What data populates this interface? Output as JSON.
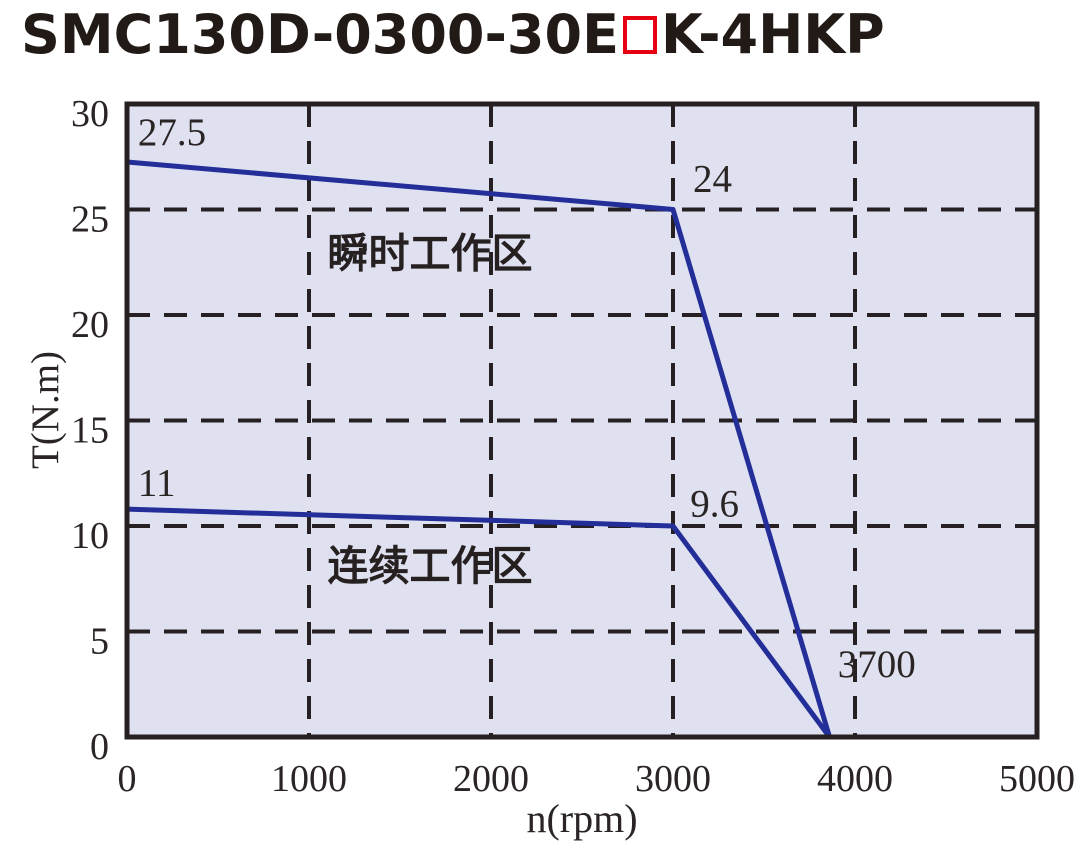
{
  "title": {
    "prefix": "SMC130D-0300-30E",
    "placeholder_char": "□",
    "suffix": "K-4HKP",
    "color": "#221a17",
    "box_color": "#e60012"
  },
  "chart_data": {
    "type": "line",
    "title": "SMC130D-0300-30E□K-4HKP torque-speed curve",
    "xlabel": "n(rpm)",
    "ylabel": "T(N.m)",
    "xlim": [
      0,
      5000
    ],
    "ylim": [
      0,
      30
    ],
    "x_ticks": [
      0,
      1000,
      2000,
      3000,
      4000,
      5000
    ],
    "y_ticks": [
      0,
      5,
      10,
      15,
      20,
      25,
      30
    ],
    "grid": "dashed",
    "legend_position": "none",
    "plot_background": "#dfe1f1",
    "line_color": "#232e99",
    "grid_color": "#262023",
    "text_color": "#2a2424",
    "series": [
      {
        "name": "瞬时工作区",
        "points": [
          [
            0,
            27.5
          ],
          [
            3000,
            24
          ],
          [
            3700,
            0
          ]
        ],
        "drawn_points": [
          [
            0,
            27.25
          ],
          [
            3000,
            25
          ],
          [
            3860,
            0
          ]
        ]
      },
      {
        "name": "连续工作区",
        "points": [
          [
            0,
            11
          ],
          [
            3000,
            9.6
          ],
          [
            3700,
            0
          ]
        ],
        "drawn_points": [
          [
            0,
            10.8
          ],
          [
            3000,
            10
          ],
          [
            3860,
            0
          ]
        ]
      }
    ],
    "point_labels": [
      {
        "text": "27.5",
        "x": 60,
        "y": 28.05,
        "anchor": "start"
      },
      {
        "text": "24",
        "x": 3110,
        "y": 25.85,
        "anchor": "start"
      },
      {
        "text": "11",
        "x": 60,
        "y": 11.45,
        "anchor": "start"
      },
      {
        "text": "9.6",
        "x": 3095,
        "y": 10.45,
        "anchor": "start"
      },
      {
        "text": "3700",
        "x": 3905,
        "y": 2.85,
        "anchor": "start"
      }
    ],
    "region_labels": [
      {
        "text": "瞬时工作区",
        "x": 1665,
        "y": 22.25,
        "anchor": "middle"
      },
      {
        "text": "连续工作区",
        "x": 1665,
        "y": 7.45,
        "anchor": "middle"
      }
    ]
  }
}
